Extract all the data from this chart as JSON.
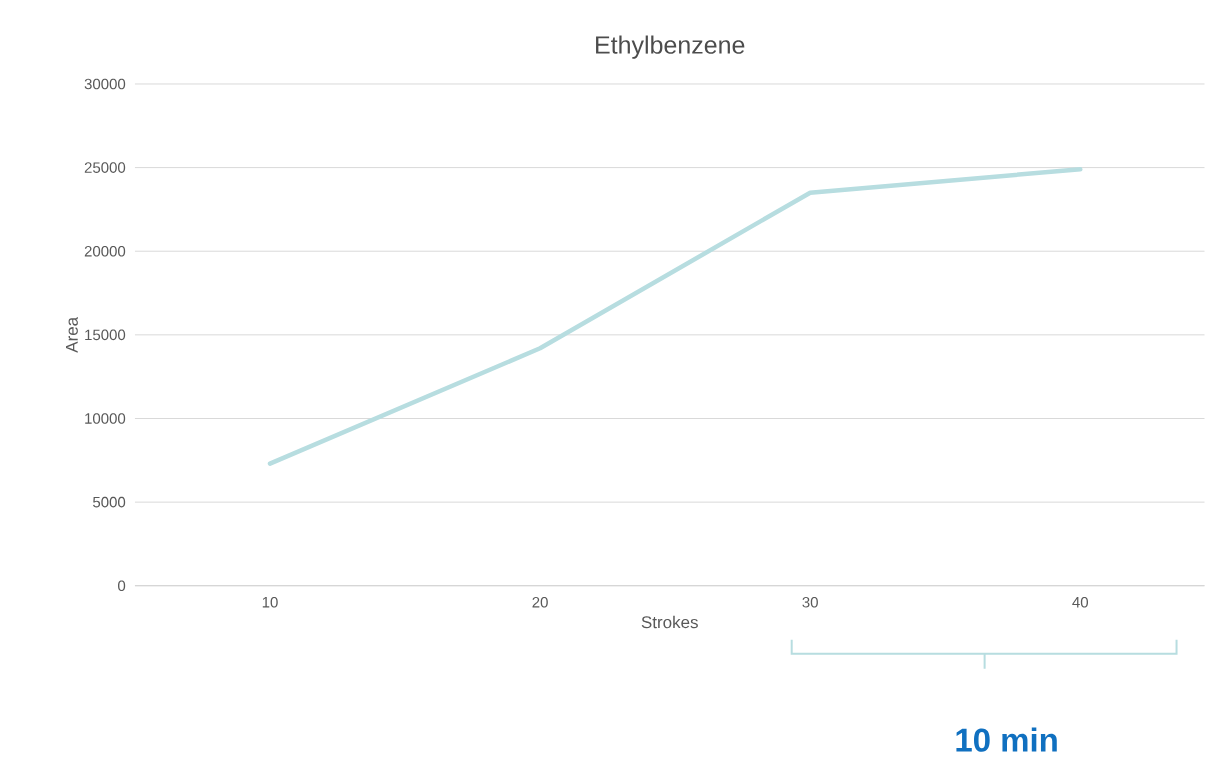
{
  "chart_data": {
    "type": "line",
    "title": "Ethylbenzene",
    "xlabel": "Strokes",
    "ylabel": "Area",
    "categories": [
      "10",
      "20",
      "30",
      "40"
    ],
    "series": [
      {
        "color": "#b7dde0",
        "values": [
          7300,
          14200,
          23500,
          24900
        ]
      }
    ],
    "ylim": [
      0,
      30000
    ],
    "yticks": [
      0,
      5000,
      10000,
      15000,
      20000,
      25000,
      30000
    ],
    "grid": "y",
    "marker": "none",
    "line_style": "solid",
    "annotations": [
      "10 min"
    ]
  }
}
